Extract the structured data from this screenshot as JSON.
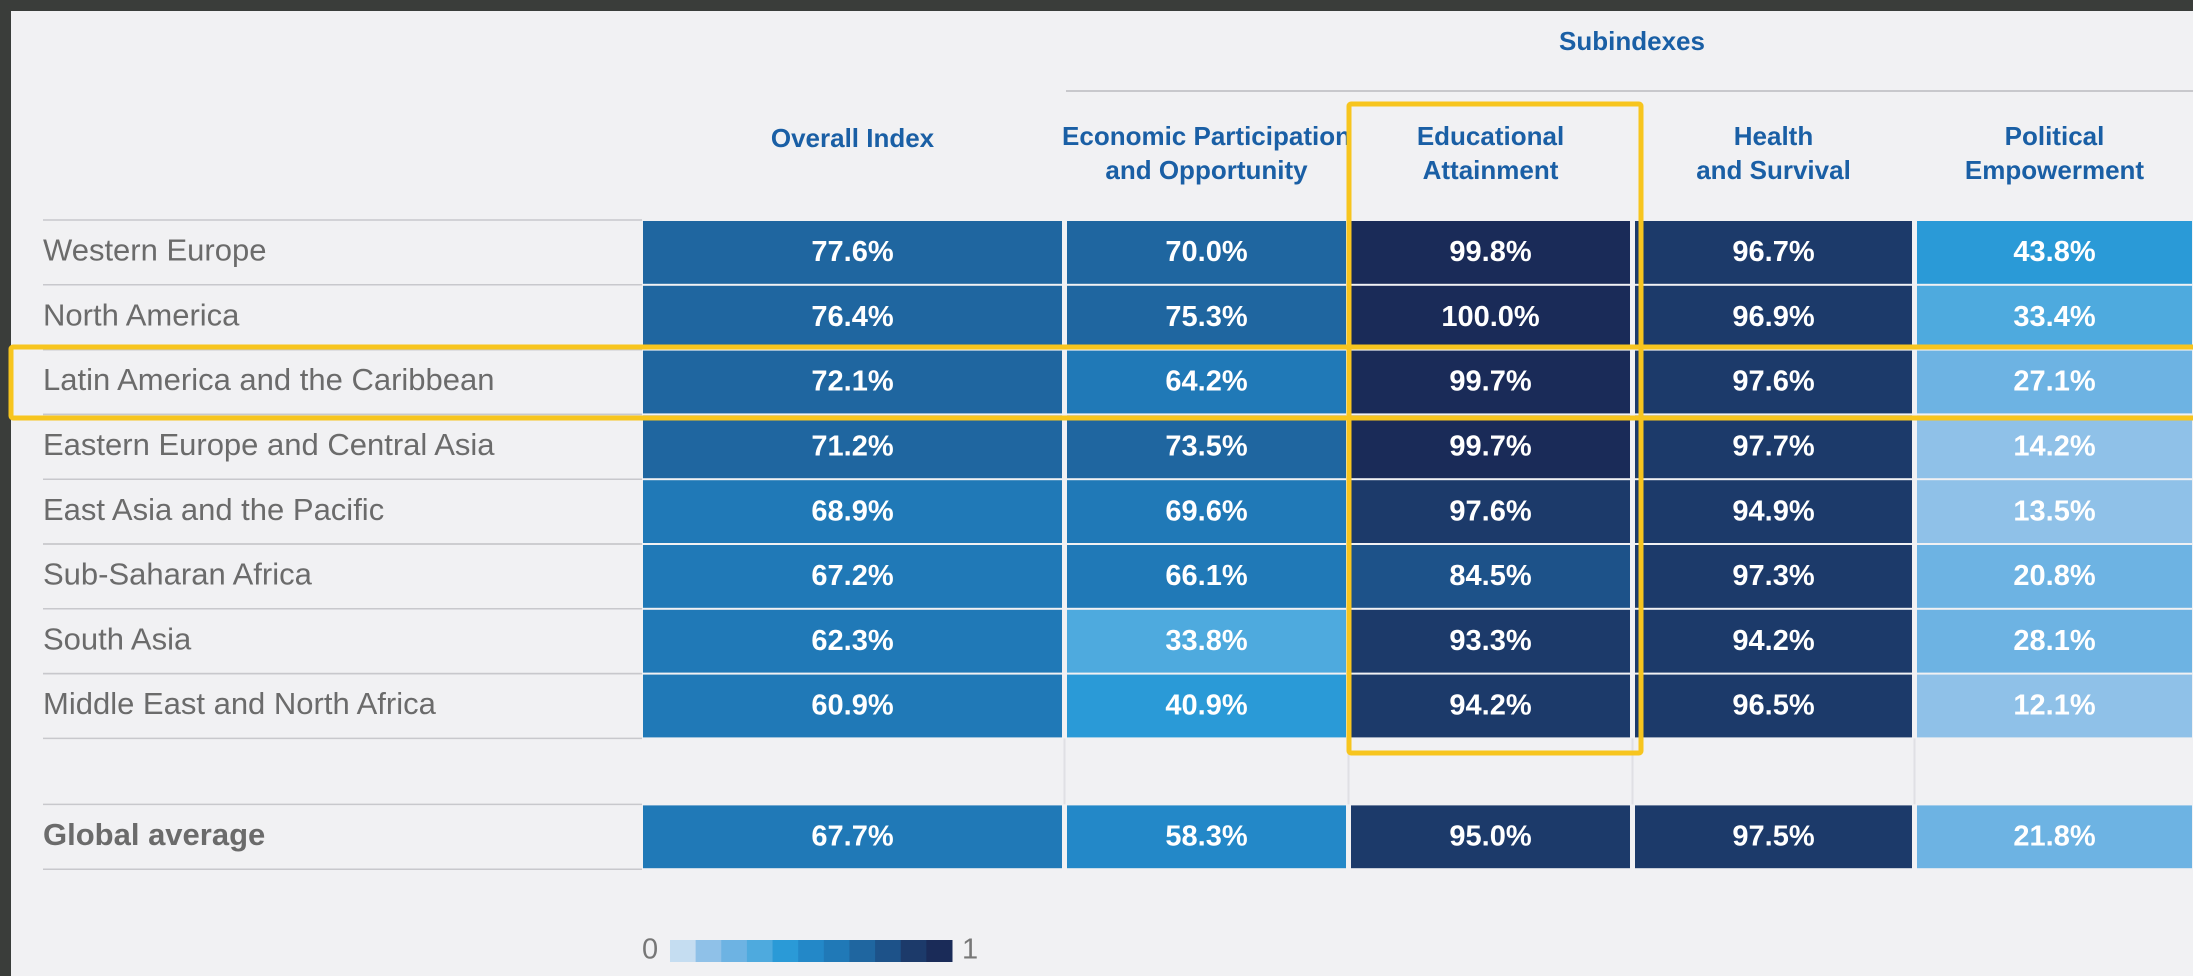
{
  "header": {
    "group": "Subindexes"
  },
  "columns": [
    {
      "lines": [
        "Overall Index"
      ]
    },
    {
      "lines": [
        "Economic Participation",
        "and Opportunity"
      ]
    },
    {
      "lines": [
        "Educational",
        "Attainment"
      ]
    },
    {
      "lines": [
        "Health",
        "and Survival"
      ]
    },
    {
      "lines": [
        "Political",
        "Empowerment"
      ]
    }
  ],
  "rows": [
    {
      "region": "Western Europe",
      "values": [
        "77.6%",
        "70.0%",
        "99.8%",
        "96.7%",
        "43.8%"
      ]
    },
    {
      "region": "North America",
      "values": [
        "76.4%",
        "75.3%",
        "100.0%",
        "96.9%",
        "33.4%"
      ]
    },
    {
      "region": "Latin America and the Caribbean",
      "values": [
        "72.1%",
        "64.2%",
        "99.7%",
        "97.6%",
        "27.1%"
      ]
    },
    {
      "region": "Eastern Europe and Central Asia",
      "values": [
        "71.2%",
        "73.5%",
        "99.7%",
        "97.7%",
        "14.2%"
      ]
    },
    {
      "region": "East Asia and the Pacific",
      "values": [
        "68.9%",
        "69.6%",
        "97.6%",
        "94.9%",
        "13.5%"
      ]
    },
    {
      "region": "Sub-Saharan Africa",
      "values": [
        "67.2%",
        "66.1%",
        "84.5%",
        "97.3%",
        "20.8%"
      ]
    },
    {
      "region": "South Asia",
      "values": [
        "62.3%",
        "33.8%",
        "93.3%",
        "94.2%",
        "28.1%"
      ]
    },
    {
      "region": "Middle East and North Africa",
      "values": [
        "60.9%",
        "40.9%",
        "94.2%",
        "96.5%",
        "12.1%"
      ]
    }
  ],
  "global": {
    "label": "Global average",
    "values": [
      "67.7%",
      "58.3%",
      "95.0%",
      "97.5%",
      "21.8%"
    ]
  },
  "legend": {
    "min": "0",
    "max": "1"
  }
}
